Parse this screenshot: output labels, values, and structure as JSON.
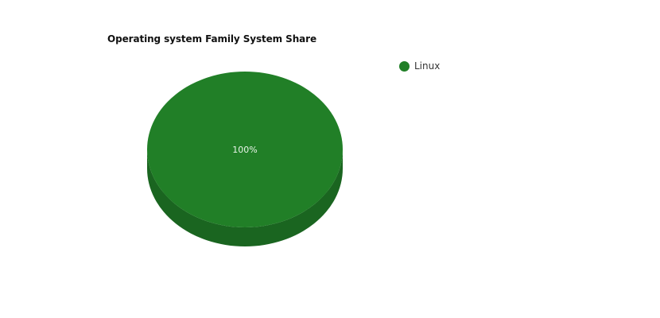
{
  "chart_data": {
    "type": "pie",
    "title": "Operating system Family System Share",
    "categories": [
      "Linux"
    ],
    "values": [
      100
    ],
    "labels": [
      "100%"
    ],
    "colors": [
      "#217f27"
    ],
    "side_colors": [
      "#1a6520"
    ],
    "legend_position": "top-right",
    "three_d": true
  }
}
